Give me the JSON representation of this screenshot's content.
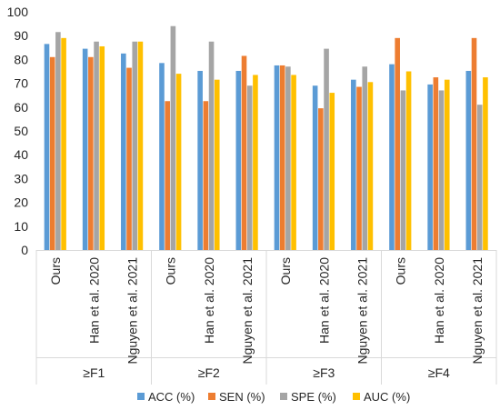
{
  "chart_data": {
    "type": "bar",
    "title": "",
    "xlabel": "",
    "ylabel": "",
    "ylim": [
      0,
      100
    ],
    "yticks": [
      0,
      10,
      20,
      30,
      40,
      50,
      60,
      70,
      80,
      90,
      100
    ],
    "grid": false,
    "legend_position": "bottom",
    "groups": [
      "≥F1",
      "≥F2",
      "≥F3",
      "≥F4"
    ],
    "methods": [
      "Ours",
      "Han et al. 2020",
      "Nguyen et al. 2021"
    ],
    "series": [
      {
        "name": "ACC (%)",
        "color": "#5B9BD5",
        "values": [
          86.5,
          84.5,
          82.5,
          78.5,
          75.2,
          75.2,
          77.5,
          69.0,
          71.5,
          78.0,
          69.5,
          75.2
        ]
      },
      {
        "name": "SEN (%)",
        "color": "#ED7D31",
        "values": [
          81.0,
          81.0,
          76.5,
          62.5,
          62.5,
          81.5,
          77.5,
          59.5,
          68.5,
          89.0,
          72.5,
          89.0
        ]
      },
      {
        "name": "SPE (%)",
        "color": "#A5A5A5",
        "values": [
          91.5,
          87.5,
          87.5,
          94.0,
          87.5,
          69.0,
          77.0,
          84.5,
          77.0,
          67.0,
          67.0,
          61.0
        ]
      },
      {
        "name": "AUC (%)",
        "color": "#FFC000",
        "values": [
          89.0,
          85.5,
          87.5,
          74.0,
          71.5,
          73.5,
          73.5,
          66.0,
          70.5,
          75.0,
          71.5,
          72.5
        ]
      }
    ]
  }
}
